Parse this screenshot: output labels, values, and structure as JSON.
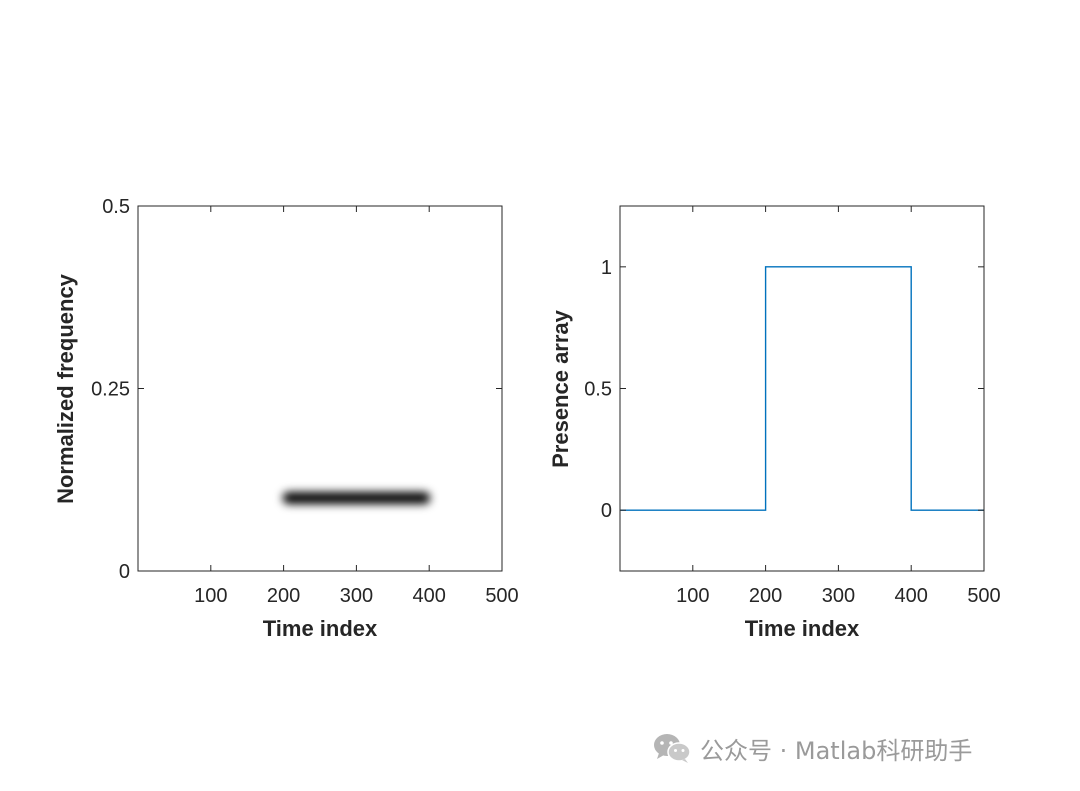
{
  "chart_data": [
    {
      "type": "heatmap",
      "xlabel": "Time index",
      "ylabel": "Normalized frequency",
      "xlim": [
        0,
        500
      ],
      "ylim": [
        0,
        0.5
      ],
      "xticks": [
        100,
        200,
        300,
        400,
        500
      ],
      "xtick_labels": [
        "100",
        "200",
        "300",
        "400",
        "500"
      ],
      "yticks": [
        0,
        0.25,
        0.5
      ],
      "ytick_labels": [
        "0",
        "0.25",
        "0.5"
      ],
      "colormap": "gray (inverted: high energy = black)",
      "band": {
        "x_start": 200,
        "x_end": 400,
        "frequency": 0.1
      },
      "grid": false
    },
    {
      "type": "line",
      "xlabel": "Time index",
      "ylabel": "Presence array",
      "xlim": [
        0,
        500
      ],
      "ylim": [
        -0.25,
        1.25
      ],
      "xticks": [
        100,
        200,
        300,
        400,
        500
      ],
      "xtick_labels": [
        "100",
        "200",
        "300",
        "400",
        "500"
      ],
      "yticks": [
        0,
        0.5,
        1
      ],
      "ytick_labels": [
        "0",
        "0.5",
        "1"
      ],
      "series": [
        {
          "x": [
            1,
            200,
            200,
            400,
            400,
            500
          ],
          "y": [
            0,
            0,
            1,
            1,
            0,
            0
          ],
          "color": "#0072BD"
        }
      ],
      "grid": false
    }
  ],
  "watermark": {
    "text": "公众号 · Matlab科研助手",
    "icon": "wechat-icon"
  },
  "colors": {
    "axis": "#262626",
    "line": "#0072BD",
    "watermark": "#9a9a9a"
  }
}
